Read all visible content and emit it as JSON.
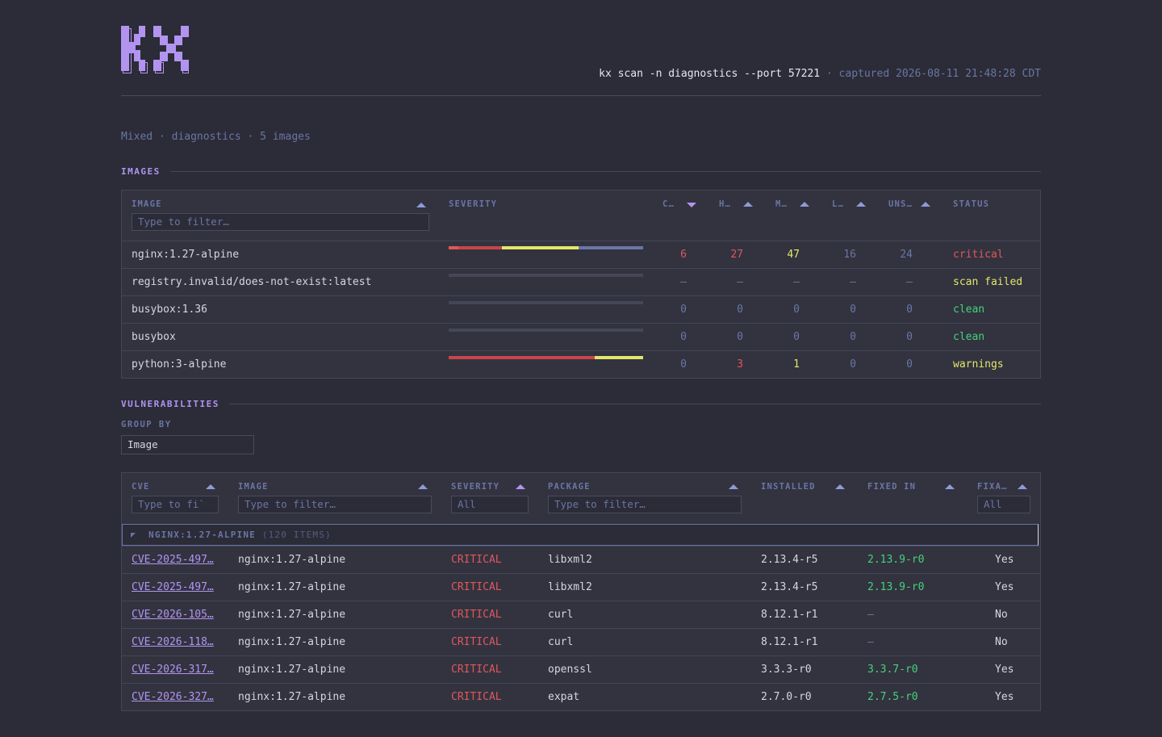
{
  "header": {
    "logo_alt": "KX",
    "command": "kx scan -n diagnostics --port 57221",
    "separator": " · ",
    "captured": "captured 2026-08-11 21:48:28 CDT"
  },
  "crumbs": "Mixed · diagnostics · 5 images",
  "images_section": {
    "title": "IMAGES",
    "columns": {
      "image": "IMAGE",
      "severity": "SEVERITY",
      "critical": "C…",
      "high": "H…",
      "medium": "M…",
      "low": "L…",
      "unknown": "UNS…",
      "status": "STATUS"
    },
    "filter_placeholder": "Type to filter…",
    "rows": [
      {
        "image": "nginx:1.27-alpine",
        "critical": "6",
        "high": "27",
        "medium": "47",
        "low": "16",
        "unknown": "24",
        "status": "critical",
        "status_color": "#e0575c",
        "bar": [
          6,
          27,
          47,
          40
        ]
      },
      {
        "image": "registry.invalid/does-not-exist:latest",
        "critical": "–",
        "high": "–",
        "medium": "–",
        "low": "–",
        "unknown": "–",
        "status": "scan failed",
        "status_color": "#e4e66a",
        "bar": []
      },
      {
        "image": "busybox:1.36",
        "critical": "0",
        "high": "0",
        "medium": "0",
        "low": "0",
        "unknown": "0",
        "status": "clean",
        "status_color": "#46d17a",
        "bar": []
      },
      {
        "image": "busybox",
        "critical": "0",
        "high": "0",
        "medium": "0",
        "low": "0",
        "unknown": "0",
        "status": "clean",
        "status_color": "#46d17a",
        "bar": []
      },
      {
        "image": "python:3-alpine",
        "critical": "0",
        "high": "3",
        "medium": "1",
        "low": "0",
        "unknown": "0",
        "status": "warnings",
        "status_color": "#e4e66a",
        "bar": [
          0,
          3,
          1,
          0
        ]
      }
    ]
  },
  "vulns_section": {
    "title": "VULNERABILITIES",
    "group_by_label": "GROUP BY",
    "group_by_value": "Image",
    "columns": {
      "cve": "CVE",
      "image": "IMAGE",
      "severity": "SEVERITY",
      "package": "PACKAGE",
      "installed": "INSTALLED",
      "fixed_in": "FIXED IN",
      "fixable": "FIXA…"
    },
    "filters": {
      "cve": "Type to fi`",
      "image": "Type to filter…",
      "severity": "All",
      "package": "Type to filter…",
      "fixable": "All"
    },
    "group": {
      "name": "NGINX:1.27-ALPINE",
      "count": "(120 ITEMS)"
    },
    "rows": [
      {
        "cve": "CVE-2025-497…",
        "image": "nginx:1.27-alpine",
        "severity": "CRITICAL",
        "package": "libxml2",
        "installed": "2.13.4-r5",
        "fixed_in": "2.13.9-r0",
        "fixable": "Yes"
      },
      {
        "cve": "CVE-2025-497…",
        "image": "nginx:1.27-alpine",
        "severity": "CRITICAL",
        "package": "libxml2",
        "installed": "2.13.4-r5",
        "fixed_in": "2.13.9-r0",
        "fixable": "Yes"
      },
      {
        "cve": "CVE-2026-105…",
        "image": "nginx:1.27-alpine",
        "severity": "CRITICAL",
        "package": "curl",
        "installed": "8.12.1-r1",
        "fixed_in": "–",
        "fixable": "No"
      },
      {
        "cve": "CVE-2026-118…",
        "image": "nginx:1.27-alpine",
        "severity": "CRITICAL",
        "package": "curl",
        "installed": "8.12.1-r1",
        "fixed_in": "–",
        "fixable": "No"
      },
      {
        "cve": "CVE-2026-317…",
        "image": "nginx:1.27-alpine",
        "severity": "CRITICAL",
        "package": "openssl",
        "installed": "3.3.3-r0",
        "fixed_in": "3.3.7-r0",
        "fixable": "Yes"
      },
      {
        "cve": "CVE-2026-327…",
        "image": "nginx:1.27-alpine",
        "severity": "CRITICAL",
        "package": "expat",
        "installed": "2.7.0-r0",
        "fixed_in": "2.7.5-r0",
        "fixable": "Yes"
      }
    ]
  },
  "colors": {
    "critical": "#e0575c",
    "high": "#c8454b",
    "medium": "#e4e66a",
    "low": "#6b75a6",
    "accent": "#b294f0"
  }
}
